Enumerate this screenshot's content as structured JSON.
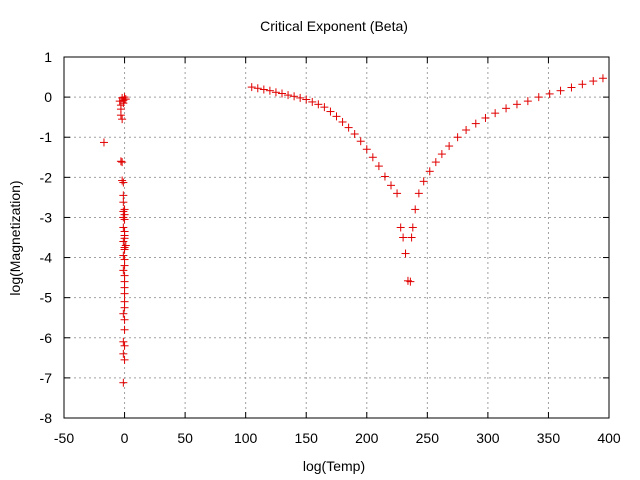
{
  "chart_data": {
    "type": "scatter",
    "title": "Critical Exponent (Beta)",
    "xlabel": "log(Temp)",
    "ylabel": "log(Magnetization)",
    "xlim": [
      -50,
      400
    ],
    "ylim": [
      -8,
      1
    ],
    "xticks": [
      "-50",
      "0",
      "50",
      "100",
      "150",
      "200",
      "250",
      "300",
      "350",
      "400"
    ],
    "yticks": [
      "1",
      "0",
      "-1",
      "-2",
      "-3",
      "-4",
      "-5",
      "-6",
      "-7",
      "-8"
    ],
    "grid": true,
    "marker": "+",
    "color": "#e00000",
    "series": [
      {
        "points": [
          [
            -17,
            -1.13
          ],
          [
            -3,
            -1.6
          ],
          [
            -2,
            -1.62
          ],
          [
            -2,
            -2.08
          ],
          [
            -1,
            -2.13
          ],
          [
            -1,
            -2.45
          ],
          [
            -1,
            -2.62
          ],
          [
            0,
            -2.8
          ],
          [
            -1,
            -2.85
          ],
          [
            0,
            -2.93
          ],
          [
            -1,
            -3.0
          ],
          [
            0,
            -3.05
          ],
          [
            -1,
            -3.25
          ],
          [
            0,
            -3.35
          ],
          [
            0,
            -3.45
          ],
          [
            0,
            -3.52
          ],
          [
            -1,
            -3.6
          ],
          [
            1,
            -3.7
          ],
          [
            0,
            -3.75
          ],
          [
            0,
            -3.8
          ],
          [
            -1,
            -3.95
          ],
          [
            0,
            -4.05
          ],
          [
            0,
            -4.2
          ],
          [
            -1,
            -4.32
          ],
          [
            0,
            -4.45
          ],
          [
            0,
            -4.6
          ],
          [
            0,
            -4.75
          ],
          [
            0,
            -4.9
          ],
          [
            0,
            -5.1
          ],
          [
            0,
            -5.25
          ],
          [
            -1,
            -5.4
          ],
          [
            0,
            -5.55
          ],
          [
            0,
            -5.8
          ],
          [
            -1,
            -6.1
          ],
          [
            0,
            -6.2
          ],
          [
            -1,
            -6.4
          ],
          [
            0,
            -6.55
          ],
          [
            -1,
            -7.12
          ],
          [
            -4,
            -0.1
          ],
          [
            -3,
            -0.2
          ],
          [
            -3,
            -0.3
          ],
          [
            -3,
            -0.45
          ],
          [
            -2,
            -0.55
          ],
          [
            -2,
            -0.02
          ],
          [
            -1,
            -0.08
          ],
          [
            0,
            0.0
          ],
          [
            1,
            -0.05
          ],
          [
            -1,
            -0.15
          ],
          [
            0,
            -0.05
          ],
          [
            105,
            0.25
          ],
          [
            110,
            0.22
          ],
          [
            115,
            0.19
          ],
          [
            120,
            0.16
          ],
          [
            125,
            0.12
          ],
          [
            130,
            0.09
          ],
          [
            135,
            0.05
          ],
          [
            140,
            0.02
          ],
          [
            145,
            -0.02
          ],
          [
            150,
            -0.06
          ],
          [
            155,
            -0.12
          ],
          [
            160,
            -0.18
          ],
          [
            165,
            -0.25
          ],
          [
            170,
            -0.36
          ],
          [
            175,
            -0.48
          ],
          [
            180,
            -0.62
          ],
          [
            185,
            -0.76
          ],
          [
            190,
            -0.92
          ],
          [
            195,
            -1.1
          ],
          [
            200,
            -1.3
          ],
          [
            205,
            -1.5
          ],
          [
            210,
            -1.72
          ],
          [
            215,
            -1.98
          ],
          [
            220,
            -2.2
          ],
          [
            225,
            -2.4
          ],
          [
            228,
            -3.25
          ],
          [
            230,
            -3.5
          ],
          [
            232,
            -3.9
          ],
          [
            234,
            -4.58
          ],
          [
            236,
            -4.6
          ],
          [
            237,
            -3.5
          ],
          [
            238,
            -3.25
          ],
          [
            240,
            -2.8
          ],
          [
            243,
            -2.4
          ],
          [
            247,
            -2.1
          ],
          [
            252,
            -1.85
          ],
          [
            257,
            -1.62
          ],
          [
            262,
            -1.42
          ],
          [
            268,
            -1.22
          ],
          [
            275,
            -1.0
          ],
          [
            282,
            -0.82
          ],
          [
            290,
            -0.66
          ],
          [
            298,
            -0.52
          ],
          [
            306,
            -0.4
          ],
          [
            315,
            -0.28
          ],
          [
            324,
            -0.18
          ],
          [
            333,
            -0.1
          ],
          [
            342,
            0.0
          ],
          [
            351,
            0.08
          ],
          [
            360,
            0.16
          ],
          [
            369,
            0.24
          ],
          [
            378,
            0.32
          ],
          [
            387,
            0.4
          ],
          [
            395,
            0.47
          ]
        ]
      }
    ]
  }
}
